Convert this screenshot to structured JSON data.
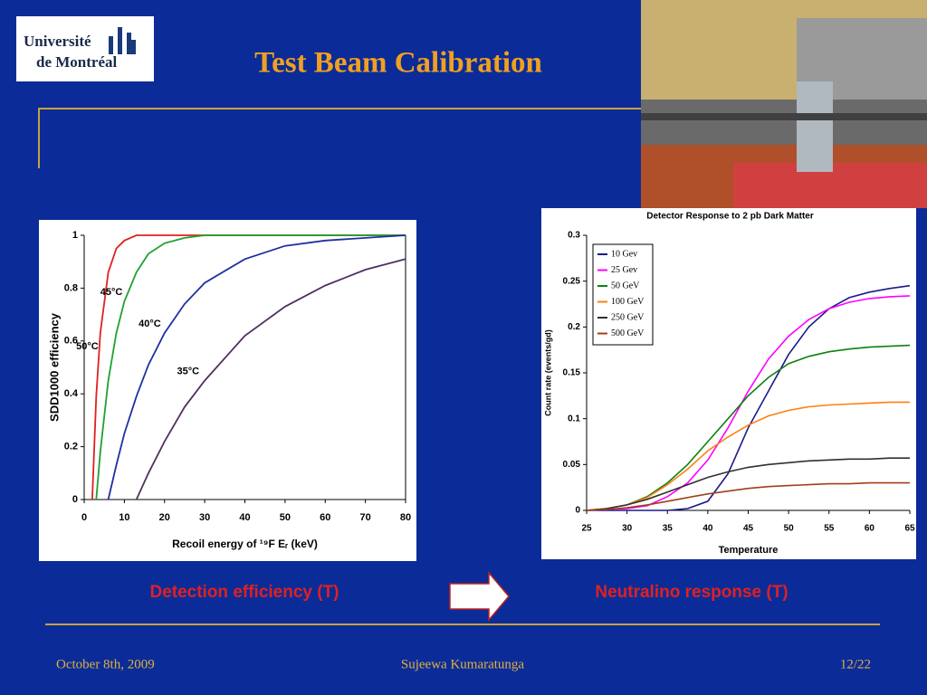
{
  "slide": {
    "title": "Test Beam Calibration",
    "logo": [
      "Université",
      "de Montréal"
    ],
    "captions": [
      "Detection efficiency (T)",
      "Neutralino response (T)"
    ],
    "footer": {
      "date": "October 8th, 2009",
      "author": "Sujeewa Kumaratunga",
      "page": "12/22"
    }
  },
  "chart_data": [
    {
      "type": "line",
      "x_label": "Recoil energy of ¹⁹F Eᵣ (keV)",
      "y_label": "SDD1000 efficiency",
      "x": [
        0,
        2,
        3,
        4,
        6,
        8,
        10,
        13,
        16,
        20,
        25,
        30,
        40,
        50,
        60,
        70,
        80
      ],
      "series": [
        {
          "name": "50°C",
          "color": "#e02020",
          "values": [
            null,
            0,
            0.39,
            0.63,
            0.86,
            0.95,
            0.98,
            1,
            1,
            1,
            1,
            1,
            1,
            1,
            1,
            1,
            1
          ]
        },
        {
          "name": "45°C",
          "color": "#20a030",
          "values": [
            null,
            null,
            0,
            0.18,
            0.45,
            0.63,
            0.75,
            0.86,
            0.93,
            0.97,
            0.99,
            1,
            1,
            1,
            1,
            1,
            1
          ]
        },
        {
          "name": "40°C",
          "color": "#2030a0",
          "values": [
            null,
            null,
            null,
            null,
            0,
            0.13,
            0.25,
            0.39,
            0.51,
            0.63,
            0.74,
            0.82,
            0.91,
            0.96,
            0.98,
            0.99,
            1
          ]
        },
        {
          "name": "35°C",
          "color": "#503060",
          "values": [
            null,
            null,
            null,
            null,
            null,
            null,
            null,
            0,
            0.1,
            0.22,
            0.35,
            0.45,
            0.62,
            0.73,
            0.81,
            0.87,
            0.91
          ]
        }
      ],
      "xlim": [
        0,
        80
      ],
      "xticks": [
        0,
        10,
        20,
        30,
        40,
        50,
        60,
        70,
        80
      ],
      "ylim": [
        0,
        1
      ],
      "yticks": [
        0,
        0.2,
        0.4,
        0.6,
        0.8,
        1
      ],
      "grid": false,
      "legend": false
    },
    {
      "type": "line",
      "title": "Detector Response to 2 pb Dark Matter",
      "x_label": "Temperature",
      "y_label": "Count rate (events/gd)",
      "x": [
        25,
        27.5,
        30,
        32.5,
        35,
        37.5,
        40,
        42.5,
        45,
        47.5,
        50,
        52.5,
        55,
        57.5,
        60,
        62.5,
        65
      ],
      "series": [
        {
          "name": "10 Gev",
          "color": "#1a1a8a",
          "values": [
            0,
            0,
            0,
            0,
            0,
            0.002,
            0.01,
            0.04,
            0.09,
            0.13,
            0.17,
            0.2,
            0.22,
            0.232,
            0.238,
            0.242,
            0.245
          ]
        },
        {
          "name": "25 Gev",
          "color": "#ff00ff",
          "values": [
            0,
            0.001,
            0.002,
            0.005,
            0.015,
            0.03,
            0.055,
            0.09,
            0.13,
            0.165,
            0.19,
            0.208,
            0.22,
            0.227,
            0.231,
            0.233,
            0.234
          ]
        },
        {
          "name": "50 GeV",
          "color": "#108010",
          "values": [
            0,
            0.002,
            0.006,
            0.015,
            0.03,
            0.05,
            0.075,
            0.1,
            0.125,
            0.145,
            0.16,
            0.168,
            0.173,
            0.176,
            0.178,
            0.179,
            0.18
          ]
        },
        {
          "name": "100 GeV",
          "color": "#ff7f10",
          "values": [
            0,
            0.002,
            0.006,
            0.014,
            0.028,
            0.045,
            0.065,
            0.08,
            0.093,
            0.103,
            0.109,
            0.113,
            0.115,
            0.116,
            0.117,
            0.118,
            0.118
          ]
        },
        {
          "name": "250 GeV",
          "color": "#303030",
          "values": [
            0,
            0.002,
            0.006,
            0.012,
            0.02,
            0.028,
            0.036,
            0.042,
            0.047,
            0.05,
            0.052,
            0.054,
            0.055,
            0.056,
            0.056,
            0.057,
            0.057
          ]
        },
        {
          "name": "500 GeV",
          "color": "#a0401a",
          "values": [
            0,
            0.001,
            0.003,
            0.006,
            0.01,
            0.014,
            0.018,
            0.021,
            0.024,
            0.026,
            0.027,
            0.028,
            0.029,
            0.029,
            0.03,
            0.03,
            0.03
          ]
        }
      ],
      "xlim": [
        25,
        65
      ],
      "xticks": [
        25,
        30,
        35,
        40,
        45,
        50,
        55,
        60,
        65
      ],
      "ylim": [
        0,
        0.3
      ],
      "yticks": [
        0,
        0.05,
        0.1,
        0.15,
        0.2,
        0.25,
        0.3
      ],
      "grid": false,
      "legend": "upper left"
    }
  ]
}
